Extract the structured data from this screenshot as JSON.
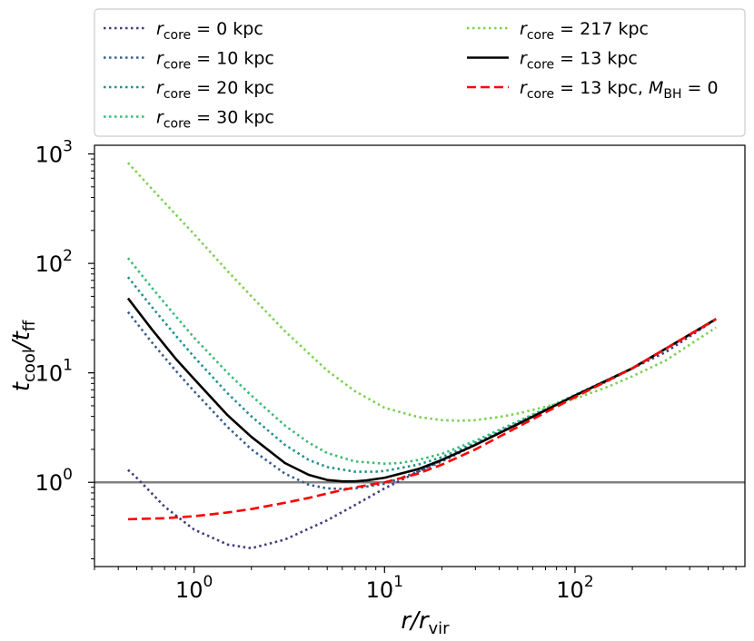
{
  "chart_data": {
    "type": "line",
    "title": "",
    "xlabel": {
      "main": "r/r",
      "sub": "vir"
    },
    "ylabel": {
      "main": "t",
      "sub1": "cool",
      "mid": "/t",
      "sub2": "ff"
    },
    "xscale": "log",
    "yscale": "log",
    "xlim": [
      0.3,
      780
    ],
    "ylim": [
      0.17,
      1200
    ],
    "xticks": [
      {
        "value": 1,
        "base": "10",
        "exp": "0"
      },
      {
        "value": 10,
        "base": "10",
        "exp": "1"
      },
      {
        "value": 100,
        "base": "10",
        "exp": "2"
      }
    ],
    "yticks": [
      {
        "value": 1,
        "base": "10",
        "exp": "0"
      },
      {
        "value": 10,
        "base": "10",
        "exp": "1"
      },
      {
        "value": 100,
        "base": "10",
        "exp": "2"
      },
      {
        "value": 1000,
        "base": "10",
        "exp": "3"
      }
    ],
    "hline": {
      "y": 1,
      "color": "#808080"
    },
    "legend_position": "top (above plot), two columns",
    "series": [
      {
        "name": "r_core = 0 kpc",
        "label": {
          "sym": "r",
          "sub": "core",
          "text": " = 0 kpc",
          "extra": null
        },
        "color": "#413d7b",
        "style": "dotted",
        "x": [
          0.45,
          0.5,
          0.7,
          1.0,
          1.5,
          2.0,
          3.0,
          5.0,
          7.0,
          10,
          15,
          20,
          30,
          50,
          70,
          100,
          150,
          200,
          300,
          550
        ],
        "y": [
          1.3,
          1.1,
          0.6,
          0.37,
          0.27,
          0.25,
          0.3,
          0.45,
          0.62,
          0.88,
          1.25,
          1.6,
          2.25,
          3.5,
          4.6,
          6.2,
          8.5,
          11,
          15.5,
          31
        ]
      },
      {
        "name": "r_core = 10 kpc",
        "label": {
          "sym": "r",
          "sub": "core",
          "text": " = 10 kpc",
          "extra": null
        },
        "color": "#355f8d",
        "style": "dotted",
        "x": [
          0.45,
          0.6,
          0.8,
          1.0,
          1.5,
          2.0,
          3.0,
          4.0,
          5.0,
          6.0,
          7.0,
          10,
          15,
          20,
          30,
          50,
          100,
          200,
          550
        ],
        "y": [
          36,
          19,
          10.5,
          6.8,
          3.2,
          2.0,
          1.2,
          0.95,
          0.88,
          0.87,
          0.88,
          0.97,
          1.25,
          1.55,
          2.2,
          3.4,
          6.2,
          11,
          31
        ]
      },
      {
        "name": "r_core = 20 kpc",
        "label": {
          "sym": "r",
          "sub": "core",
          "text": " = 20 kpc",
          "extra": null
        },
        "color": "#21918c",
        "style": "dotted",
        "x": [
          0.45,
          0.6,
          0.8,
          1.0,
          1.5,
          2.0,
          3.0,
          4.0,
          5.0,
          7.0,
          9.0,
          10,
          15,
          20,
          30,
          50,
          100,
          200,
          550
        ],
        "y": [
          75,
          40,
          22,
          14,
          6.5,
          4.0,
          2.2,
          1.6,
          1.38,
          1.25,
          1.25,
          1.27,
          1.45,
          1.7,
          2.3,
          3.5,
          6.2,
          11,
          31
        ]
      },
      {
        "name": "r_core = 30 kpc",
        "label": {
          "sym": "r",
          "sub": "core",
          "text": " = 30 kpc",
          "extra": null
        },
        "color": "#3bbb75",
        "style": "dotted",
        "x": [
          0.45,
          0.6,
          0.8,
          1.0,
          1.5,
          2.0,
          3.0,
          4.0,
          5.0,
          7.0,
          10,
          12,
          15,
          20,
          30,
          50,
          100,
          200,
          550
        ],
        "y": [
          112,
          60,
          33,
          21,
          10,
          6.2,
          3.3,
          2.3,
          1.85,
          1.55,
          1.48,
          1.5,
          1.6,
          1.82,
          2.4,
          3.6,
          6.3,
          11,
          31
        ]
      },
      {
        "name": "r_core = 217 kpc",
        "label": {
          "sym": "r",
          "sub": "core",
          "text": " = 217 kpc",
          "extra": null
        },
        "color": "#7ad151",
        "style": "dotted",
        "x": [
          0.45,
          0.6,
          0.8,
          1.0,
          1.5,
          2.0,
          3.0,
          5.0,
          7.0,
          10,
          15,
          20,
          25,
          30,
          40,
          50,
          70,
          100,
          150,
          200,
          300,
          550
        ],
        "y": [
          830,
          480,
          280,
          185,
          85,
          50,
          24,
          10.5,
          6.8,
          4.8,
          3.95,
          3.7,
          3.65,
          3.7,
          3.95,
          4.25,
          4.9,
          5.8,
          7.5,
          9.3,
          13,
          26
        ]
      },
      {
        "name": "r_core = 13 kpc",
        "label": {
          "sym": "r",
          "sub": "core",
          "text": " = 13 kpc",
          "extra": null
        },
        "color": "#000000",
        "style": "solid",
        "x": [
          0.45,
          0.6,
          0.8,
          1.0,
          1.5,
          2.0,
          3.0,
          4.0,
          5.0,
          6.0,
          7.0,
          8.0,
          10,
          15,
          20,
          30,
          50,
          100,
          200,
          550
        ],
        "y": [
          48,
          25,
          13.5,
          8.8,
          4.1,
          2.6,
          1.5,
          1.17,
          1.05,
          1.02,
          1.02,
          1.04,
          1.1,
          1.32,
          1.6,
          2.2,
          3.4,
          6.2,
          11,
          31
        ]
      },
      {
        "name": "r_core = 13 kpc, M_BH = 0",
        "label": {
          "sym": "r",
          "sub": "core",
          "text": " = 13 kpc, ",
          "extra": {
            "sym": "M",
            "sub": "BH",
            "text": " = 0"
          }
        },
        "color": "#ff0000",
        "style": "dashed",
        "x": [
          0.45,
          0.7,
          1.0,
          1.5,
          2.0,
          3.0,
          4.0,
          5.0,
          7.0,
          10,
          15,
          20,
          30,
          50,
          100,
          200,
          550
        ],
        "y": [
          0.46,
          0.47,
          0.49,
          0.53,
          0.57,
          0.65,
          0.72,
          0.79,
          0.9,
          1.0,
          1.2,
          1.45,
          2.0,
          3.2,
          6.0,
          11,
          31
        ]
      }
    ]
  }
}
